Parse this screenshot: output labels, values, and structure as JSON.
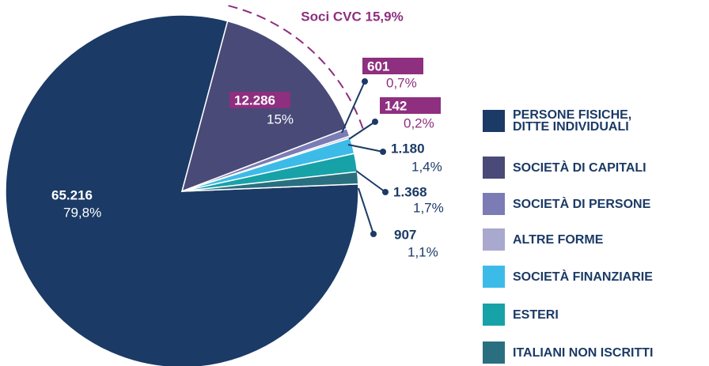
{
  "chart_data": {
    "type": "pie",
    "categories": [
      "PERSONE FISICHE,\nDITTE INDIVIDUALI",
      "SOCIETÀ DI CAPITALI",
      "SOCIETÀ DI PERSONE",
      "ALTRE FORME",
      "SOCIETÀ FINANZIARIE",
      "ESTERI",
      "ITALIANI NON ISCRITTI"
    ],
    "values": [
      65216,
      12286,
      601,
      142,
      1180,
      1368,
      907
    ],
    "value_labels": [
      "65.216",
      "12.286",
      "601",
      "142",
      "1.180",
      "1.368",
      "907"
    ],
    "percents": [
      79.8,
      15,
      0.7,
      0.2,
      1.4,
      1.7,
      1.1
    ],
    "percent_labels": [
      "79,8%",
      "15%",
      "0,7%",
      "0,2%",
      "1,4%",
      "1,7%",
      "1,1%"
    ],
    "colors": [
      "#1b3a66",
      "#4a4a78",
      "#7b7bb5",
      "#a9a8cf",
      "#3dbbe8",
      "#17a2a8",
      "#2a6f80"
    ],
    "annotation": "Soci CVC 15,9%"
  }
}
